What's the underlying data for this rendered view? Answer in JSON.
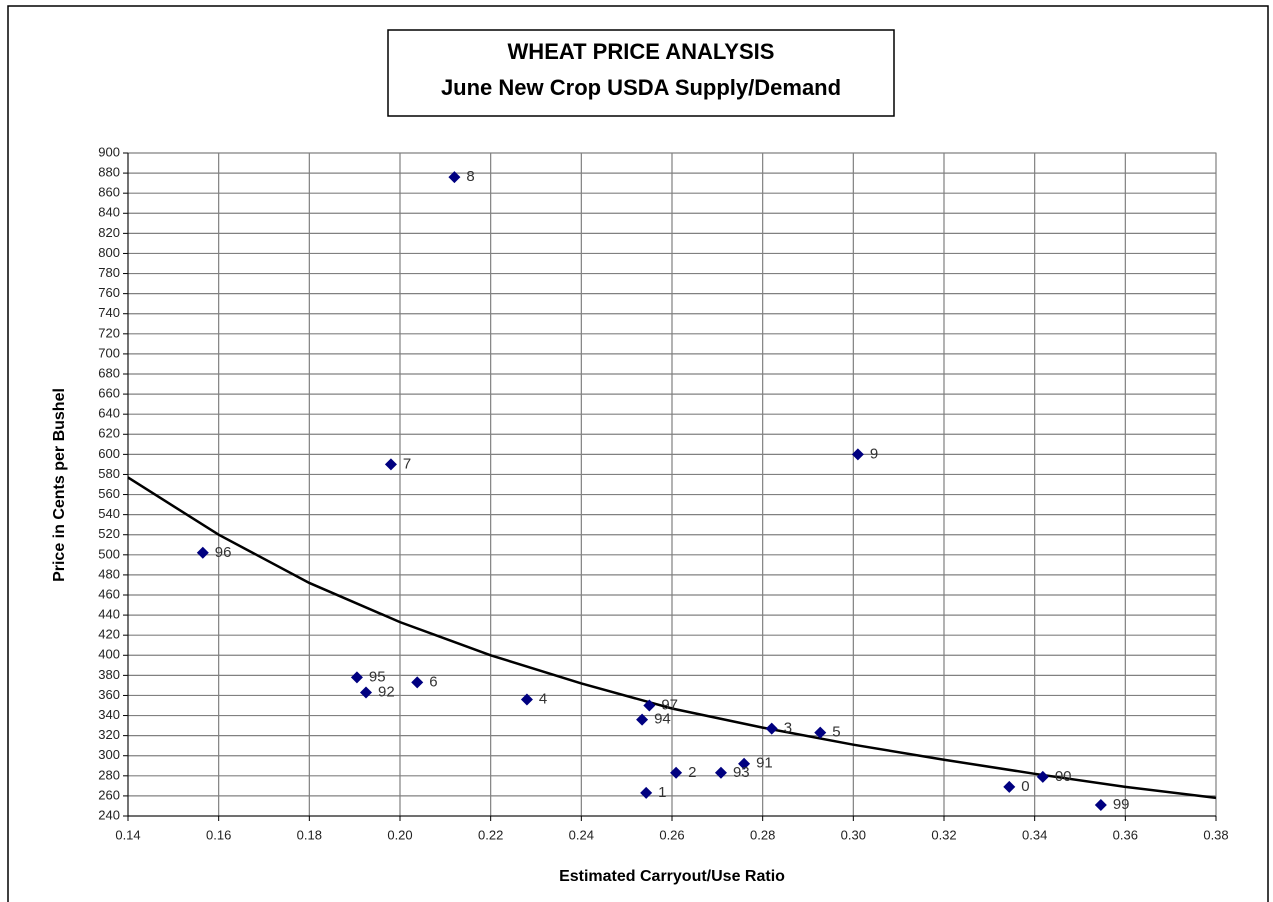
{
  "chart_data": {
    "type": "scatter",
    "title": "WHEAT PRICE ANALYSIS",
    "subtitle": "June New Crop USDA Supply/Demand",
    "x_label": "Estimated Carryout/Use Ratio",
    "y_label": "Price in Cents per Bushel",
    "color": "#000080",
    "grid": true,
    "labels": [
      "8",
      "7",
      "9",
      "96",
      "95",
      "92",
      "6",
      "4",
      "97",
      "94",
      "3",
      "5",
      "91",
      "93",
      "2",
      "1",
      "0",
      "00",
      "99"
    ],
    "x": [
      0.212,
      0.198,
      0.301,
      0.1565,
      0.1905,
      0.1925,
      0.2038,
      0.228,
      0.255,
      0.2534,
      0.282,
      0.2927,
      0.2759,
      0.2708,
      0.2609,
      0.2543,
      0.3344,
      0.3418,
      0.3546
    ],
    "values": [
      876,
      590,
      600,
      502,
      378,
      363,
      373,
      356,
      350,
      336,
      327,
      323,
      292,
      283,
      283,
      263,
      269,
      279,
      251
    ],
    "trendline": {
      "x": [
        0.14,
        0.16,
        0.18,
        0.2,
        0.22,
        0.24,
        0.26,
        0.28,
        0.3,
        0.32,
        0.34,
        0.36,
        0.38
      ],
      "values": [
        577,
        520,
        472,
        433,
        400,
        372,
        347,
        328,
        311,
        296,
        282,
        269,
        258
      ],
      "color": "#000000"
    },
    "xlim": [
      0.14,
      0.38
    ],
    "ylim": [
      240,
      900
    ],
    "xticks": [
      0.14,
      0.16,
      0.18,
      {
        "value": 0.2,
        "label": "0.20"
      },
      0.22,
      0.24,
      0.26,
      0.28,
      {
        "value": 0.3,
        "label": "0.30"
      },
      0.32,
      0.34,
      0.36,
      0.38
    ],
    "yticks": [
      240,
      260,
      280,
      300,
      320,
      340,
      360,
      380,
      400,
      420,
      440,
      460,
      480,
      500,
      520,
      540,
      560,
      580,
      600,
      620,
      640,
      660,
      680,
      700,
      720,
      740,
      760,
      780,
      800,
      820,
      840,
      860,
      880,
      900
    ]
  }
}
